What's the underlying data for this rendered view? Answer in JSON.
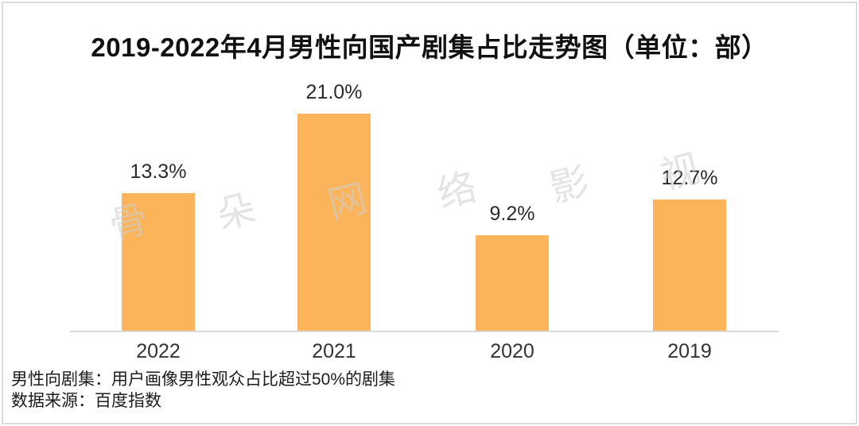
{
  "chart": {
    "title": "2019-2022年4月男性向国产剧集占比走势图（单位：部）"
  },
  "chart_data": {
    "type": "bar",
    "title": "2019-2022年4月男性向国产剧集占比走势图（单位：部）",
    "categories": [
      "2022",
      "2021",
      "2020",
      "2019"
    ],
    "values": [
      13.3,
      21.0,
      9.2,
      12.7
    ],
    "value_labels": [
      "13.3%",
      "21.0%",
      "9.2%",
      "12.7%"
    ],
    "xlabel": "",
    "ylabel": "",
    "unit": "部",
    "ylim": [
      0,
      25
    ],
    "grid": false,
    "legend": false,
    "bar_color": "#FBB459",
    "axis_color": "#D9D9D9",
    "label_color": "#2B2B2B"
  },
  "watermark": {
    "text": "骨朵网络影视",
    "characters": [
      "骨",
      "朵",
      "网",
      "络",
      "影",
      "视"
    ],
    "color": "rgba(206,206,206,0.55)"
  },
  "notes": {
    "definition": "男性向剧集：用户画像男性观众占比超过50%的剧集",
    "source": "数据来源：百度指数"
  }
}
